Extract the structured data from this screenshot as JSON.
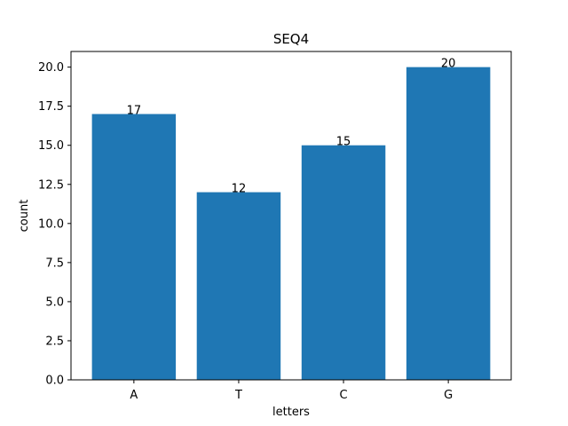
{
  "chart_data": {
    "type": "bar",
    "title": "SEQ4",
    "xlabel": "letters",
    "ylabel": "count",
    "categories": [
      "A",
      "T",
      "C",
      "G"
    ],
    "values": [
      17,
      12,
      15,
      20
    ],
    "ylim": [
      0,
      21
    ],
    "yticks": [
      "0.0",
      "2.5",
      "5.0",
      "7.5",
      "10.0",
      "12.5",
      "15.0",
      "17.5",
      "20.0"
    ],
    "bar_color": "#1f77b4",
    "grid": false,
    "legend": "none"
  }
}
